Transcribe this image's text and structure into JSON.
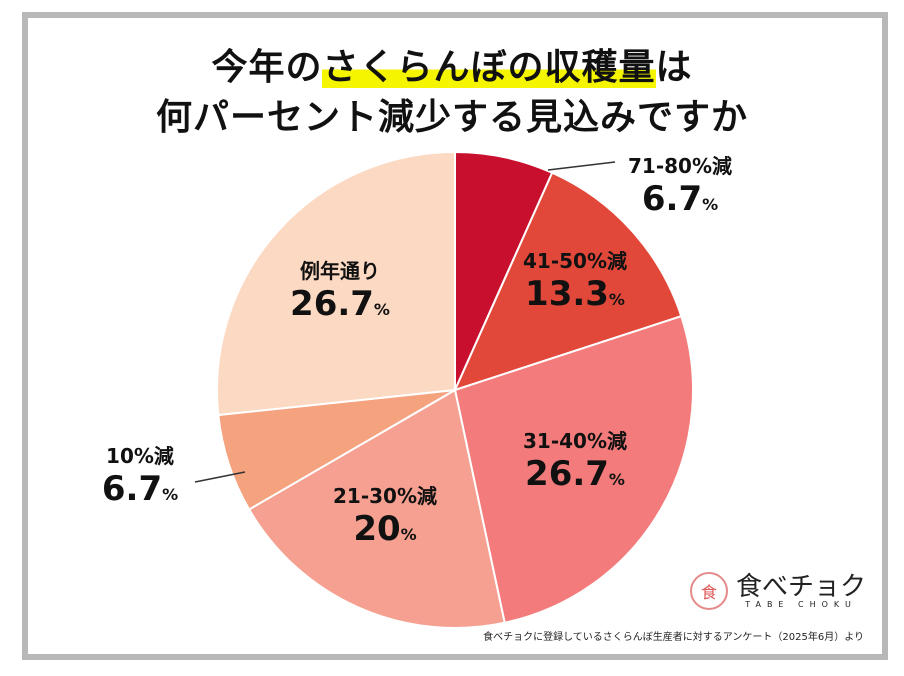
{
  "title": {
    "line1_pre": "今年の",
    "line1_highlight": "さくらんぼの収穫量",
    "line1_post": "は",
    "line2": "何パーセント減少する見込みですか",
    "highlight_color": "#f5f500"
  },
  "chart_data": {
    "type": "pie",
    "start": "top",
    "direction": "clockwise",
    "unit": "%",
    "slices": [
      {
        "label": "71-80%減",
        "value": 6.7,
        "display": "6.7",
        "color": "#c8102e"
      },
      {
        "label": "41-50%減",
        "value": 13.3,
        "display": "13.3",
        "color": "#e2483a"
      },
      {
        "label": "31-40%減",
        "value": 26.7,
        "display": "26.7",
        "color": "#f47b7b"
      },
      {
        "label": "21-30%減",
        "value": 20,
        "display": "20",
        "color": "#f5a090"
      },
      {
        "label": "10%減",
        "value": 6.7,
        "display": "6.7",
        "color": "#f5a27f"
      },
      {
        "label": "例年通り",
        "value": 26.7,
        "display": "26.7",
        "color": "#fcd9c2"
      }
    ]
  },
  "logo": {
    "name": "食べチョク",
    "sub": "TABE CHOKU",
    "mark": "食直"
  },
  "footnote": "食べチョクに登録しているさくらんぼ生産者に対するアンケート（2025年6月）より"
}
